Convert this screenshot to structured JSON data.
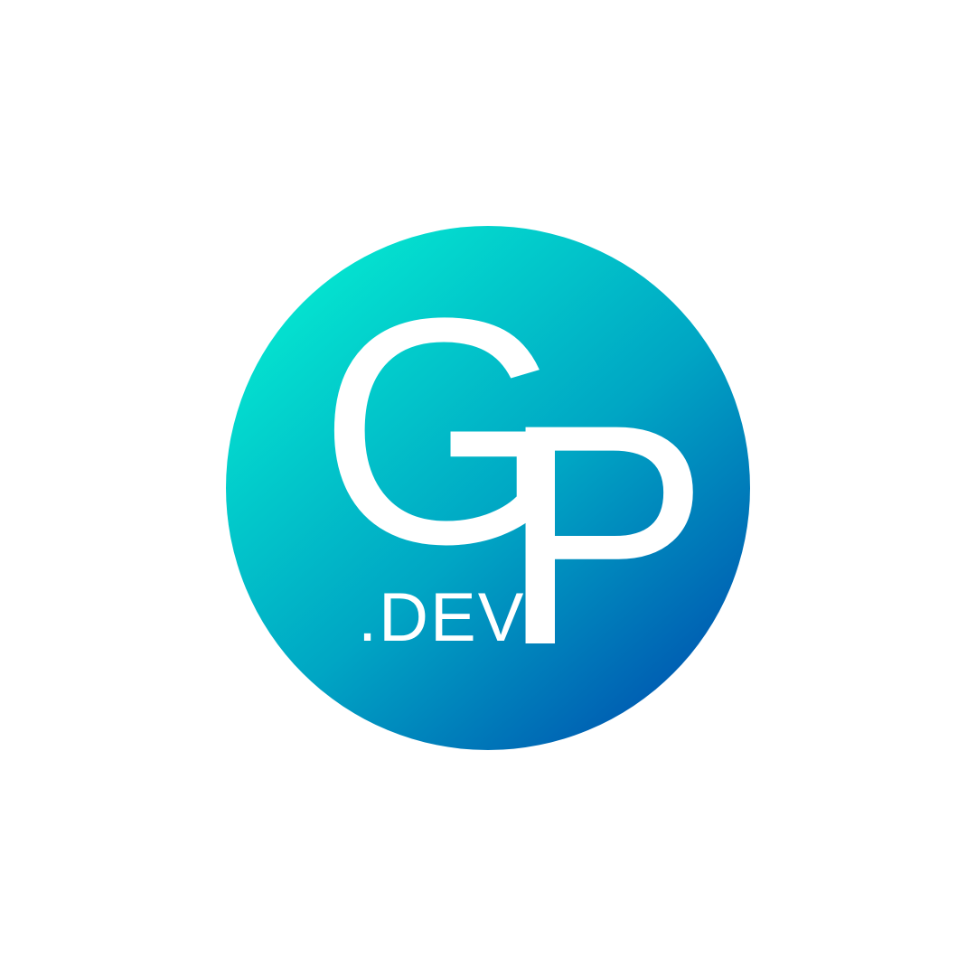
{
  "logo": {
    "monogram": [
      "G",
      "P"
    ],
    "suffix": ".DEV"
  }
}
